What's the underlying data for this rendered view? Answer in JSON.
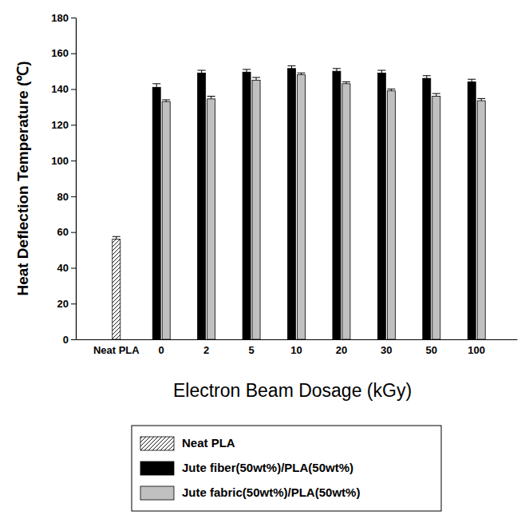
{
  "chart_data": {
    "type": "bar",
    "x_label": "Electron Beam Dosage (kGy)",
    "y_label": "Heat Deflection Temperature (℃)",
    "categories": [
      "Neat PLA",
      "0",
      "2",
      "5",
      "10",
      "20",
      "30",
      "50",
      "100"
    ],
    "series": [
      {
        "name": "Neat PLA",
        "color": "#000000",
        "values": [
          56,
          null,
          null,
          null,
          null,
          null,
          null,
          null,
          null
        ],
        "errors": [
          1.5,
          null,
          null,
          null,
          null,
          null,
          null,
          null,
          null
        ]
      },
      {
        "name": "Jute fiber(50wt%)/PLA(50wt%)",
        "color": "#000000",
        "values": [
          null,
          141,
          149,
          149.5,
          151.5,
          150,
          149,
          146,
          144
        ],
        "errors": [
          null,
          2,
          1.5,
          1.5,
          1.5,
          1.5,
          1.5,
          1.5,
          1.5
        ]
      },
      {
        "name": "Jute fabric(50wt%)/PLA(50wt%)",
        "color": "#c0c0c0",
        "values": [
          null,
          133,
          134.5,
          145,
          148,
          143,
          139,
          136,
          133.5
        ],
        "errors": [
          null,
          1,
          1.5,
          1.5,
          1,
          1,
          1,
          1.5,
          1.2
        ]
      }
    ],
    "ylim": [
      0,
      180
    ],
    "yticks": [
      0,
      20,
      40,
      60,
      80,
      100,
      120,
      140,
      160,
      180
    ],
    "legend": "bottom",
    "grid": false
  }
}
